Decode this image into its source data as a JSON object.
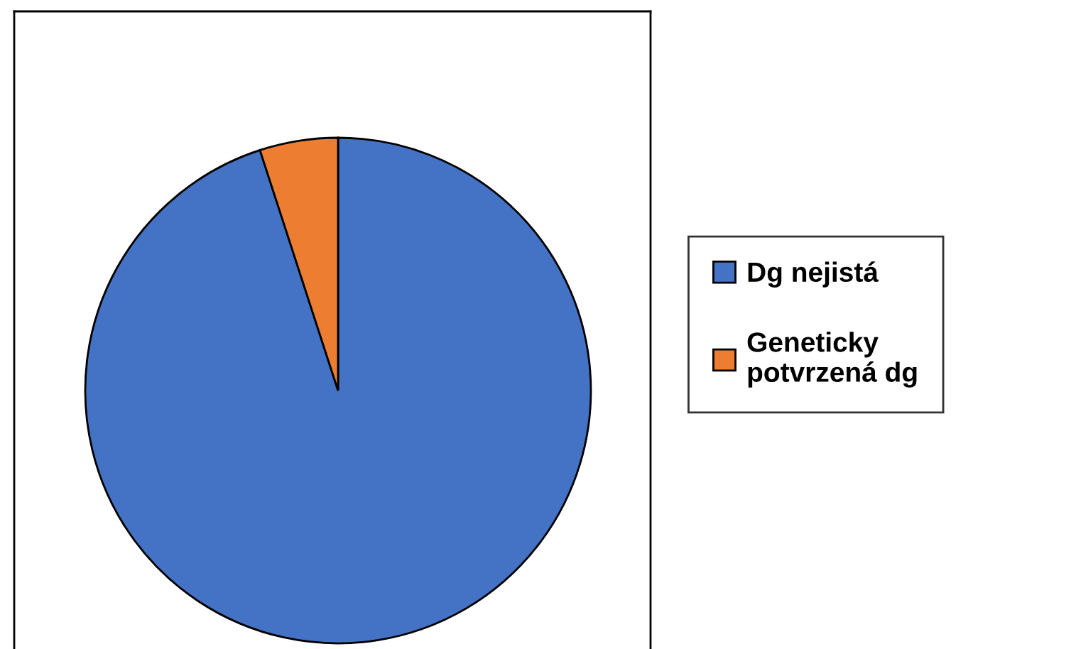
{
  "chart_data": {
    "type": "pie",
    "categories": [
      "Dg nejistá",
      "Geneticky potvrzená dg"
    ],
    "values": [
      95,
      5
    ],
    "colors": [
      "#4472c4",
      "#ed7d31"
    ],
    "legend": "right"
  }
}
